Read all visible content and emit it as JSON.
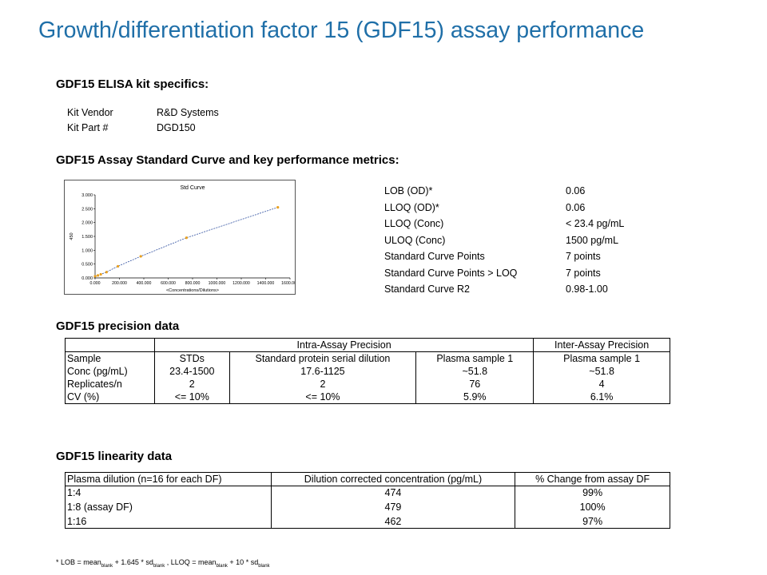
{
  "title": "Growth/differentiation factor 15 (GDF15) assay performance",
  "kit": {
    "heading": "GDF15 ELISA kit specifics:",
    "rows": [
      {
        "k": "Kit Vendor",
        "v": "R&D Systems"
      },
      {
        "k": "Kit Part #",
        "v": "DGD150"
      }
    ]
  },
  "curve": {
    "heading": "GDF15 Assay Standard Curve and key performance metrics:",
    "metrics": [
      {
        "k": "LOB (OD)*",
        "v": "0.06"
      },
      {
        "k": "LLOQ (OD)*",
        "v": "0.06"
      },
      {
        "k": "LLOQ (Conc)",
        "v": "< 23.4 pg/mL"
      },
      {
        "k": "ULOQ (Conc)",
        "v": "1500 pg/mL"
      },
      {
        "k": "Standard Curve Points",
        "v": "7 points"
      },
      {
        "k": "Standard Curve Points > LOQ",
        "v": "7 points"
      },
      {
        "k": "Standard Curve R2",
        "v": "0.98-1.00"
      }
    ]
  },
  "chart_data": {
    "type": "scatter",
    "title": "Std Curve",
    "xlabel": "<Concentrations/Dilutions>",
    "ylabel": "450",
    "xlim": [
      0,
      1600
    ],
    "ylim": [
      0,
      3
    ],
    "xticks": [
      "0.000",
      "200.000",
      "400.000",
      "600.000",
      "800.000",
      "1000.000",
      "1200.000",
      "1400.000",
      "1600.000"
    ],
    "yticks": [
      "0.000",
      "0.500",
      "1.000",
      "1.500",
      "2.000",
      "2.500",
      "3.000"
    ],
    "points": [
      {
        "x": 0,
        "y": 0.06
      },
      {
        "x": 23.4,
        "y": 0.09
      },
      {
        "x": 46.9,
        "y": 0.13
      },
      {
        "x": 93.8,
        "y": 0.21
      },
      {
        "x": 187.5,
        "y": 0.42
      },
      {
        "x": 375,
        "y": 0.78
      },
      {
        "x": 750,
        "y": 1.45
      },
      {
        "x": 1500,
        "y": 2.55
      }
    ],
    "fit_line": true,
    "grid": false,
    "point_color": "#e8a020",
    "line_color": "#3050a0"
  },
  "precision": {
    "heading": "GDF15 precision data",
    "group_intra": "Intra-Assay Precision",
    "group_inter": "Inter-Assay Precision",
    "rows": [
      [
        "Sample",
        "STDs",
        "Standard protein serial dilution",
        "Plasma sample 1",
        "Plasma sample 1"
      ],
      [
        "Conc (pg/mL)",
        "23.4-1500",
        "17.6-1125",
        "~51.8",
        "~51.8"
      ],
      [
        "Replicates/n",
        "2",
        "2",
        "76",
        "4"
      ],
      [
        "CV (%)",
        "<= 10%",
        "<= 10%",
        "5.9%",
        "6.1%"
      ]
    ]
  },
  "linearity": {
    "heading": "GDF15 linearity data",
    "headers": [
      "Plasma dilution (n=16 for each DF)",
      "Dilution corrected concentration (pg/mL)",
      "% Change from assay DF"
    ],
    "rows": [
      [
        "1:4",
        "474",
        "99%"
      ],
      [
        "1:8 (assay DF)",
        "479",
        "100%"
      ],
      [
        "1:16",
        "462",
        "97%"
      ]
    ]
  },
  "footnote": {
    "p1": "* LOB = mean",
    "s1": "blank",
    "p2": " + 1.645 * sd",
    "s2": "blank",
    "p3": " , LLOQ = mean",
    "s3": "blank",
    "p4": " + 10 * sd",
    "s4": "blank"
  }
}
